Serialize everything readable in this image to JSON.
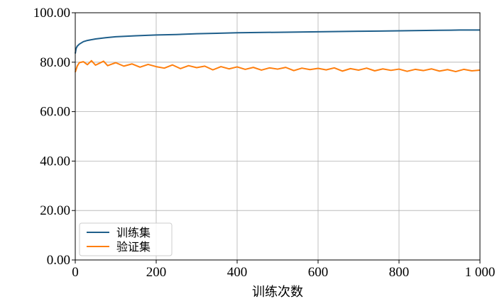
{
  "chart_data": {
    "type": "line",
    "xlabel": "训练次数",
    "ylabel": "",
    "xlim": [
      0,
      1000
    ],
    "ylim": [
      0,
      100
    ],
    "grid": true,
    "legend_position": "bottom-left",
    "x_ticks": [
      {
        "value": 0,
        "label": "0"
      },
      {
        "value": 200,
        "label": "200"
      },
      {
        "value": 400,
        "label": "400"
      },
      {
        "value": 600,
        "label": "600"
      },
      {
        "value": 800,
        "label": "800"
      },
      {
        "value": 1000,
        "label": "1 000"
      }
    ],
    "y_ticks": [
      {
        "value": 0,
        "label": "0.00"
      },
      {
        "value": 20,
        "label": "20.00"
      },
      {
        "value": 40,
        "label": "40.00"
      },
      {
        "value": 60,
        "label": "60.00"
      },
      {
        "value": 80,
        "label": "80.00"
      },
      {
        "value": 100,
        "label": "100.00"
      }
    ],
    "series": [
      {
        "name": "训练集",
        "color": "#1f5f8b",
        "x": [
          0,
          2,
          5,
          10,
          20,
          30,
          50,
          75,
          100,
          150,
          200,
          250,
          300,
          350,
          400,
          450,
          500,
          550,
          600,
          650,
          700,
          750,
          800,
          850,
          900,
          950,
          1000
        ],
        "values": [
          83.5,
          85.5,
          86.5,
          87.3,
          88.3,
          88.8,
          89.4,
          89.9,
          90.3,
          90.7,
          91.0,
          91.2,
          91.5,
          91.7,
          91.9,
          92.0,
          92.1,
          92.2,
          92.3,
          92.4,
          92.5,
          92.6,
          92.7,
          92.8,
          92.9,
          93.0,
          93.0
        ]
      },
      {
        "name": "验证集",
        "color": "#ff7f0e",
        "x": [
          0,
          5,
          10,
          20,
          30,
          40,
          50,
          60,
          70,
          80,
          90,
          100,
          120,
          140,
          160,
          180,
          200,
          220,
          240,
          260,
          280,
          300,
          320,
          340,
          360,
          380,
          400,
          420,
          440,
          460,
          480,
          500,
          520,
          540,
          560,
          580,
          600,
          620,
          640,
          660,
          680,
          700,
          720,
          740,
          760,
          780,
          800,
          820,
          840,
          860,
          880,
          900,
          920,
          940,
          960,
          980,
          1000
        ],
        "values": [
          76.0,
          78.5,
          79.8,
          80.2,
          79.0,
          80.6,
          78.8,
          79.6,
          80.4,
          78.6,
          79.2,
          79.8,
          78.4,
          79.3,
          78.0,
          79.1,
          78.2,
          77.6,
          78.9,
          77.4,
          78.6,
          77.8,
          78.4,
          76.9,
          78.2,
          77.3,
          78.1,
          77.1,
          77.9,
          76.8,
          77.7,
          77.2,
          77.9,
          76.6,
          77.6,
          77.0,
          77.5,
          76.9,
          77.7,
          76.4,
          77.4,
          76.8,
          77.6,
          76.5,
          77.3,
          76.7,
          77.2,
          76.3,
          77.1,
          76.6,
          77.3,
          76.4,
          77.0,
          76.2,
          77.1,
          76.5,
          76.8
        ]
      }
    ]
  }
}
